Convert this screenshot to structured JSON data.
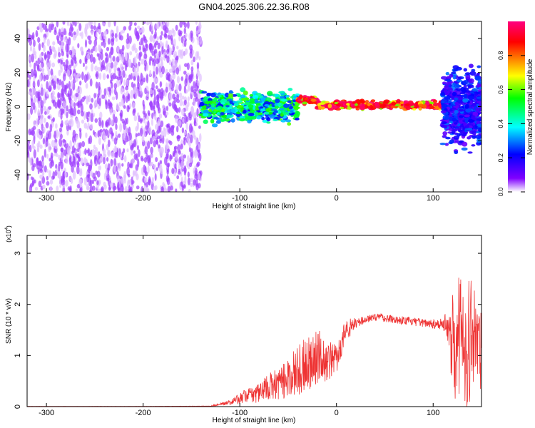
{
  "figure": {
    "title": "GN04.2025.306.22.36.R08"
  },
  "chart_data": [
    {
      "type": "heatmap",
      "title": "GN04.2025.306.22.36.R08",
      "xlabel": "Height of straight line (km)",
      "ylabel": "Frequency (Hz)",
      "xlim": [
        -320,
        150
      ],
      "ylim": [
        -50,
        50
      ],
      "x_ticks": [
        -300,
        -200,
        -100,
        0,
        100
      ],
      "y_ticks": [
        -40,
        -20,
        0,
        20,
        40
      ],
      "colorbar": {
        "label": "Normalized spectral amplitude",
        "range": [
          0,
          1
        ],
        "ticks": [
          "0.0",
          "0.2",
          "0.4",
          "0.6",
          "0.8"
        ],
        "colors": [
          "#ffffff",
          "#8000ff",
          "#0000ff",
          "#00ffff",
          "#00ff00",
          "#ffff00",
          "#ff8000",
          "#ff0000",
          "#ff0080"
        ]
      },
      "regions": [
        {
          "x_range": [
            -320,
            -140
          ],
          "frequency_range": [
            -50,
            50
          ],
          "amplitude": [
            0.05,
            0.15
          ],
          "description": "noise"
        },
        {
          "x_range": [
            -140,
            -40
          ],
          "frequency_center": 0,
          "frequency_spread": 8,
          "amplitude": [
            0.2,
            0.6
          ]
        },
        {
          "x_range": [
            -40,
            110
          ],
          "frequency_center": 1,
          "frequency_spread": 2,
          "amplitude": [
            0.6,
            1.0
          ]
        },
        {
          "x_range": [
            110,
            150
          ],
          "frequency_center": -2,
          "frequency_spread": 20,
          "amplitude": [
            0.1,
            0.3
          ]
        }
      ]
    },
    {
      "type": "line",
      "xlabel": "Height of straight line (km)",
      "ylabel": "SNR (10 * v/v)",
      "y_multiplier": "(x10⁴)",
      "y_multiplier_base": "(x10",
      "y_multiplier_exp": "4",
      "y_multiplier_close": ")",
      "xlim": [
        -320,
        150
      ],
      "ylim": [
        0,
        3.35
      ],
      "x_ticks": [
        -300,
        -200,
        -100,
        0,
        100
      ],
      "y_ticks": [
        0,
        1,
        2,
        3
      ],
      "series": [
        {
          "color": "#ee3333",
          "x": [
            -320,
            -200,
            -130,
            -110,
            -100,
            -90,
            -80,
            -70,
            -60,
            -50,
            -40,
            -30,
            -20,
            -10,
            0,
            10,
            20,
            30,
            40,
            50,
            60,
            70,
            80,
            90,
            100,
            110,
            115,
            120,
            125,
            130,
            135,
            140,
            145,
            150
          ],
          "y": [
            0.005,
            0.005,
            0.01,
            0.08,
            0.15,
            0.22,
            0.25,
            0.35,
            0.4,
            0.55,
            0.65,
            0.8,
            0.95,
            0.85,
            0.9,
            1.5,
            1.6,
            1.7,
            1.75,
            1.73,
            1.7,
            1.68,
            1.65,
            1.63,
            1.62,
            1.6,
            1.55,
            1.3,
            1.2,
            1.4,
            1.1,
            1.3,
            1.2,
            1.0
          ],
          "noise_amplitude": [
            0.005,
            0.005,
            0.01,
            0.06,
            0.12,
            0.2,
            0.25,
            0.35,
            0.4,
            0.5,
            0.6,
            0.7,
            0.7,
            0.5,
            0.35,
            0.3,
            0.15,
            0.1,
            0.1,
            0.1,
            0.1,
            0.1,
            0.1,
            0.1,
            0.12,
            0.15,
            0.4,
            1.4,
            1.6,
            1.7,
            1.6,
            1.5,
            1.4,
            1.3
          ]
        }
      ]
    }
  ]
}
